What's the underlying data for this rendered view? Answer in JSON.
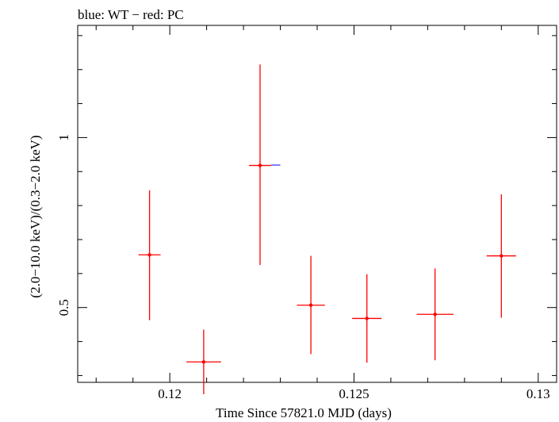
{
  "chart_data": {
    "type": "scatter",
    "title": "blue: WT − red: PC",
    "xlabel": "Time Since 57821.0 MJD (days)",
    "ylabel": "(2.0−10.0 keV)/(0.3−2.0 keV)",
    "xlim": [
      0.1175,
      0.1305
    ],
    "ylim": [
      0.28,
      1.33
    ],
    "xticks": [
      {
        "value": 0.12,
        "label": "0.12"
      },
      {
        "value": 0.125,
        "label": "0.125"
      },
      {
        "value": 0.13,
        "label": "0.13"
      }
    ],
    "yticks": [
      {
        "value": 0.5,
        "label": "0.5"
      },
      {
        "value": 1.0,
        "label": "1"
      }
    ],
    "grid": false,
    "series": [
      {
        "name": "PC",
        "color": "#ff0000",
        "points": [
          {
            "x": 0.11945,
            "xerr": 0.0003,
            "y": 0.655,
            "ylo": 0.463,
            "yhi": 0.845
          },
          {
            "x": 0.12092,
            "xerr": 0.00047,
            "y": 0.34,
            "ylo": 0.245,
            "yhi": 0.435
          },
          {
            "x": 0.12245,
            "xerr": 0.0003,
            "y": 0.918,
            "ylo": 0.625,
            "yhi": 1.215
          },
          {
            "x": 0.12383,
            "xerr": 0.00038,
            "y": 0.507,
            "ylo": 0.363,
            "yhi": 0.652
          },
          {
            "x": 0.12535,
            "xerr": 0.0004,
            "y": 0.468,
            "ylo": 0.338,
            "yhi": 0.598
          },
          {
            "x": 0.1272,
            "xerr": 0.0005,
            "y": 0.48,
            "ylo": 0.345,
            "yhi": 0.615
          },
          {
            "x": 0.129,
            "xerr": 0.0004,
            "y": 0.652,
            "ylo": 0.47,
            "yhi": 0.833
          }
        ]
      }
    ],
    "blue_segment": {
      "x0": 0.12275,
      "x1": 0.123,
      "y": 0.918
    }
  }
}
